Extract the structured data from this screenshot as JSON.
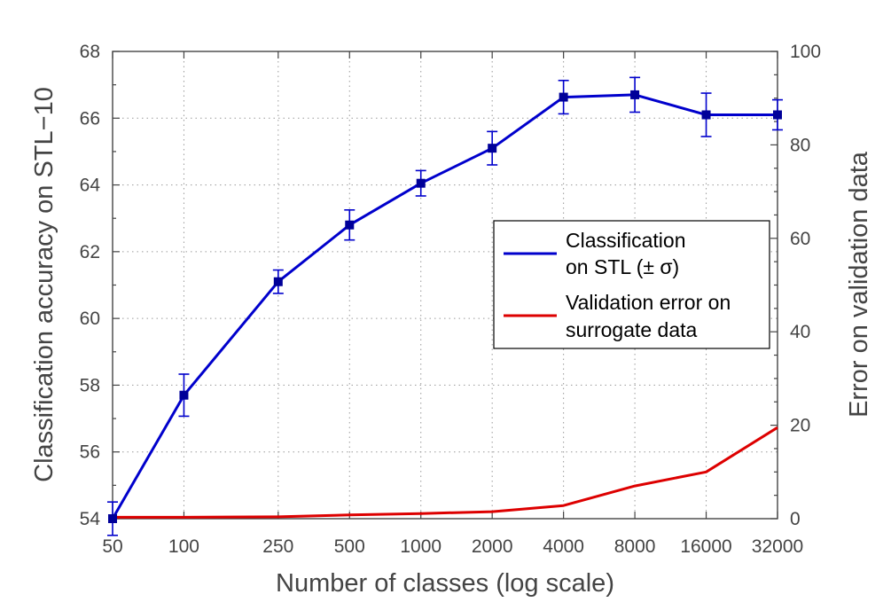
{
  "chart_data": {
    "type": "line",
    "xlabel": "Number of classes (log scale)",
    "ylabel": "Classification accuracy on STL−10",
    "y2label": "Error on validation data",
    "xscale": "log",
    "x": [
      50,
      100,
      250,
      500,
      1000,
      2000,
      4000,
      8000,
      16000,
      32000
    ],
    "x_tick_labels": [
      "50",
      "100",
      "250",
      "500",
      "1000",
      "2000",
      "4000",
      "8000",
      "16000",
      "32000"
    ],
    "ylim": [
      54,
      68
    ],
    "y_ticks": [
      54,
      56,
      58,
      60,
      62,
      64,
      66,
      68
    ],
    "y2lim": [
      0,
      100
    ],
    "y2_ticks": [
      0,
      20,
      40,
      60,
      80,
      100
    ],
    "grid": true,
    "legend_position": "center-right",
    "series": [
      {
        "name": "Classification on STL (± σ)",
        "legend_lines": [
          "Classification",
          "on STL (± σ)"
        ],
        "axis": "left",
        "color": "#0000cc",
        "marker": "square",
        "values": [
          54.0,
          57.7,
          61.1,
          62.8,
          64.05,
          65.1,
          66.63,
          66.7,
          66.1,
          66.1
        ],
        "errors": [
          0.5,
          0.63,
          0.35,
          0.45,
          0.38,
          0.5,
          0.5,
          0.52,
          0.65,
          0.45
        ]
      },
      {
        "name": "Validation error on surrogate data",
        "legend_lines": [
          "Validation error on",
          "surrogate data"
        ],
        "axis": "right",
        "color": "#dd0000",
        "values": [
          0.3,
          0.3,
          0.4,
          0.8,
          1.1,
          1.5,
          2.8,
          7.0,
          10.0,
          19.5
        ]
      }
    ]
  }
}
